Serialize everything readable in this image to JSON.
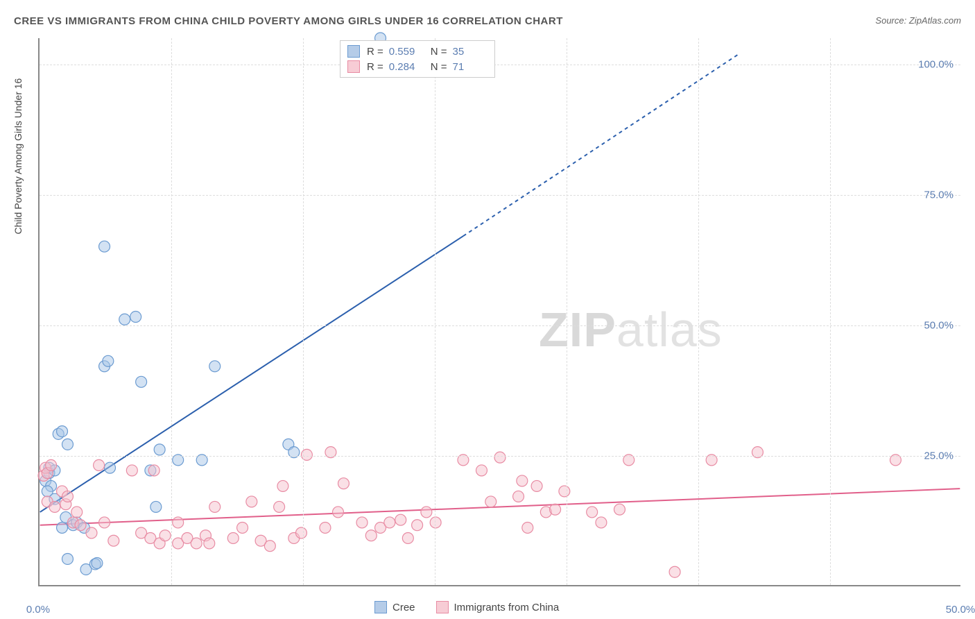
{
  "title": "CREE VS IMMIGRANTS FROM CHINA CHILD POVERTY AMONG GIRLS UNDER 16 CORRELATION CHART",
  "source_label": "Source:",
  "source_name": "ZipAtlas.com",
  "y_axis_label": "Child Poverty Among Girls Under 16",
  "watermark_a": "ZIP",
  "watermark_b": "atlas",
  "chart": {
    "type": "scatter",
    "xlim": [
      0,
      50
    ],
    "ylim": [
      0,
      105
    ],
    "x_ticks": [
      0,
      50
    ],
    "x_tick_labels": [
      "0.0%",
      "50.0%"
    ],
    "y_ticks": [
      25,
      50,
      75,
      100
    ],
    "y_tick_labels": [
      "25.0%",
      "50.0%",
      "75.0%",
      "100.0%"
    ],
    "x_minor_ticks": [
      7.14,
      14.29,
      21.43,
      28.57,
      35.71,
      42.86
    ],
    "background_color": "#ffffff",
    "grid_color": "#dddddd",
    "axis_color": "#888888",
    "label_fontsize": 14,
    "tick_fontsize": 15,
    "tick_color": "#5b7db1",
    "marker_radius": 8,
    "marker_opacity": 0.5,
    "marker_stroke_width": 1.2,
    "trend_line_width": 2,
    "trend_dash": "5,5"
  },
  "series": [
    {
      "name": "Cree",
      "color_fill": "#a8c5e8",
      "color_stroke": "#6b9bd1",
      "swatch_fill": "#b5cce8",
      "swatch_border": "#6b9bd1",
      "r_label": "R =",
      "r_value": "0.559",
      "n_label": "N =",
      "n_value": "35",
      "trend_color": "#2b5fad",
      "trend_x1": 0,
      "trend_y1": 14,
      "trend_x2": 23,
      "trend_y2": 67,
      "trend_x3": 38,
      "trend_y3": 102,
      "points": [
        [
          0.3,
          20
        ],
        [
          0.5,
          21.5
        ],
        [
          0.6,
          19
        ],
        [
          0.4,
          18
        ],
        [
          0.8,
          16.5
        ],
        [
          0.5,
          22.5
        ],
        [
          1.0,
          29
        ],
        [
          1.2,
          29.5
        ],
        [
          1.5,
          27
        ],
        [
          0.8,
          22
        ],
        [
          1.2,
          11
        ],
        [
          1.4,
          13
        ],
        [
          1.8,
          11.5
        ],
        [
          2.0,
          12
        ],
        [
          2.4,
          11
        ],
        [
          2.5,
          3
        ],
        [
          1.5,
          5
        ],
        [
          3.0,
          4
        ],
        [
          3.1,
          4.2
        ],
        [
          3.5,
          42
        ],
        [
          3.7,
          43
        ],
        [
          3.5,
          65
        ],
        [
          4.6,
          51
        ],
        [
          5.2,
          51.5
        ],
        [
          5.5,
          39
        ],
        [
          3.8,
          22.5
        ],
        [
          6.3,
          15
        ],
        [
          6.5,
          26
        ],
        [
          7.5,
          24
        ],
        [
          9.5,
          42
        ],
        [
          8.8,
          24
        ],
        [
          13.5,
          27
        ],
        [
          13.8,
          25.5
        ],
        [
          18.5,
          105
        ],
        [
          6.0,
          22
        ]
      ]
    },
    {
      "name": "Immigrants from China",
      "color_fill": "#f5c2cd",
      "color_stroke": "#e88ba3",
      "swatch_fill": "#f7ccd5",
      "swatch_border": "#e88ba3",
      "r_label": "R =",
      "r_value": "0.284",
      "n_label": "N =",
      "n_value": "71",
      "trend_color": "#e15f8a",
      "trend_x1": 0,
      "trend_y1": 11.5,
      "trend_x2": 50,
      "trend_y2": 18.5,
      "trend_x3": 50,
      "trend_y3": 18.5,
      "points": [
        [
          0.2,
          21
        ],
        [
          0.3,
          22.5
        ],
        [
          0.4,
          21.5
        ],
        [
          0.6,
          23
        ],
        [
          0.4,
          16
        ],
        [
          0.8,
          15
        ],
        [
          1.2,
          18
        ],
        [
          1.4,
          15.5
        ],
        [
          1.5,
          17
        ],
        [
          1.8,
          12
        ],
        [
          2.0,
          14
        ],
        [
          2.2,
          11.5
        ],
        [
          2.8,
          10
        ],
        [
          3.2,
          23
        ],
        [
          3.5,
          12
        ],
        [
          4.0,
          8.5
        ],
        [
          5.0,
          22
        ],
        [
          5.5,
          10
        ],
        [
          6.0,
          9
        ],
        [
          6.5,
          8
        ],
        [
          6.2,
          22
        ],
        [
          6.8,
          9.5
        ],
        [
          7.5,
          12
        ],
        [
          7.5,
          8
        ],
        [
          8.0,
          9
        ],
        [
          8.5,
          8
        ],
        [
          9.0,
          9.5
        ],
        [
          9.5,
          15
        ],
        [
          9.2,
          8
        ],
        [
          10.5,
          9
        ],
        [
          11.0,
          11
        ],
        [
          11.5,
          16
        ],
        [
          12.0,
          8.5
        ],
        [
          12.5,
          7.5
        ],
        [
          13.0,
          15
        ],
        [
          13.2,
          19
        ],
        [
          13.8,
          9
        ],
        [
          14.2,
          10
        ],
        [
          14.5,
          25
        ],
        [
          15.5,
          11
        ],
        [
          15.8,
          25.5
        ],
        [
          16.2,
          14
        ],
        [
          16.5,
          19.5
        ],
        [
          17.5,
          12
        ],
        [
          18.0,
          9.5
        ],
        [
          18.5,
          11
        ],
        [
          19.0,
          12
        ],
        [
          19.6,
          12.5
        ],
        [
          20.0,
          9
        ],
        [
          20.5,
          11.5
        ],
        [
          21.0,
          14
        ],
        [
          21.5,
          12
        ],
        [
          23.0,
          24
        ],
        [
          24.0,
          22
        ],
        [
          24.5,
          16
        ],
        [
          25.0,
          24.5
        ],
        [
          26.0,
          17
        ],
        [
          26.2,
          20
        ],
        [
          26.5,
          11
        ],
        [
          27.0,
          19
        ],
        [
          27.5,
          14
        ],
        [
          28.0,
          14.5
        ],
        [
          28.5,
          18
        ],
        [
          30.0,
          14
        ],
        [
          30.5,
          12
        ],
        [
          31.5,
          14.5
        ],
        [
          32.0,
          24
        ],
        [
          34.5,
          2.5
        ],
        [
          36.5,
          24
        ],
        [
          39.0,
          25.5
        ],
        [
          46.5,
          24
        ]
      ]
    }
  ]
}
